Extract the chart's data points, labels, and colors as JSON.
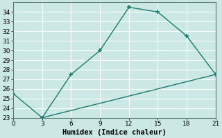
{
  "line1_x": [
    0,
    3,
    6,
    9,
    12,
    15,
    18,
    21
  ],
  "line1_y": [
    25.5,
    23.0,
    27.5,
    30.0,
    34.5,
    34.0,
    31.5,
    27.5
  ],
  "line2_x": [
    3,
    21
  ],
  "line2_y": [
    23.0,
    27.5
  ],
  "line_color": "#1a7a6e",
  "marker": "+",
  "marker_size": 5,
  "marker_linewidth": 1.2,
  "xlabel": "Humidex (Indice chaleur)",
  "xlim": [
    0,
    21
  ],
  "ylim": [
    23,
    35
  ],
  "xticks": [
    0,
    3,
    6,
    9,
    12,
    15,
    18,
    21
  ],
  "yticks": [
    23,
    24,
    25,
    26,
    27,
    28,
    29,
    30,
    31,
    32,
    33,
    34
  ],
  "background_color": "#cbe8e4",
  "grid_color": "#ffffff",
  "tick_fontsize": 6.5,
  "xlabel_fontsize": 7.5,
  "linewidth": 1.0
}
